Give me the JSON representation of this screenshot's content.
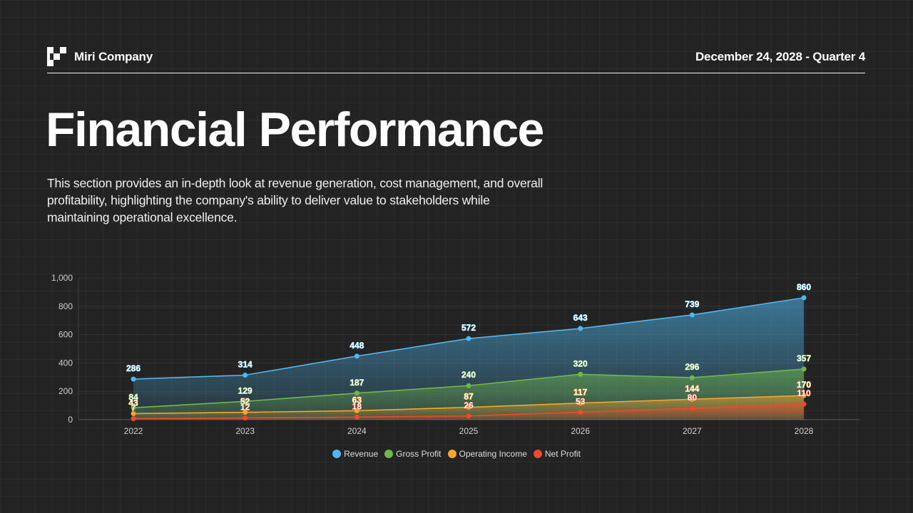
{
  "header": {
    "company": "Miri Company",
    "date": "December 24, 2028 - Quarter 4"
  },
  "page": {
    "title": "Financial Performance",
    "description": "This section provides an in-depth look at revenue generation, cost management, and overall profitability, highlighting the company's ability to deliver value to stakeholders while maintaining operational excellence."
  },
  "icons": {
    "logo": "checkerboard-logo-icon"
  },
  "colors": {
    "background": "#232323",
    "revenue": "#4FB8F0",
    "gross_profit": "#6FB84A",
    "operating_income": "#F5A530",
    "net_profit": "#EE4A2E"
  },
  "chart_data": {
    "type": "area",
    "title": "",
    "xlabel": "",
    "ylabel": "",
    "categories": [
      "2022",
      "2023",
      "2024",
      "2025",
      "2026",
      "2027",
      "2028"
    ],
    "ylim": [
      0,
      1000
    ],
    "yticks": [
      "0",
      "200",
      "400",
      "600",
      "800",
      "1,000"
    ],
    "grid": true,
    "legend_position": "bottom",
    "series": [
      {
        "name": "Revenue",
        "color": "#4FB8F0",
        "values": [
          286,
          314,
          448,
          572,
          643,
          739,
          860
        ]
      },
      {
        "name": "Gross Profit",
        "color": "#6FB84A",
        "values": [
          84,
          129,
          187,
          240,
          320,
          296,
          357
        ]
      },
      {
        "name": "Operating Income",
        "color": "#F5A530",
        "values": [
          43,
          52,
          63,
          87,
          117,
          144,
          170
        ]
      },
      {
        "name": "Net Profit",
        "color": "#EE4A2E",
        "values": [
          7,
          12,
          18,
          26,
          53,
          80,
          110
        ]
      }
    ]
  }
}
